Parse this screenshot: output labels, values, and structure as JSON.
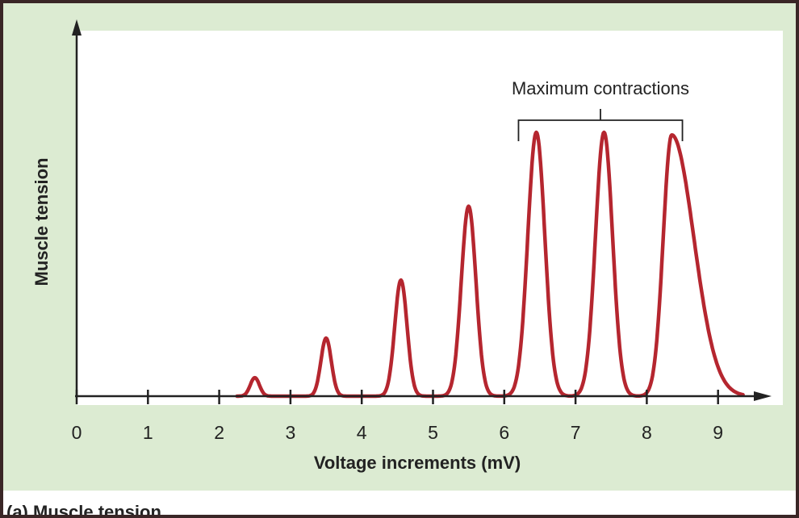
{
  "caption": "(a) Muscle tension",
  "colors": {
    "curve": "#b5262f",
    "axis": "#222222",
    "panel_background": "#dcebd2",
    "plot_background": "#ffffff"
  },
  "chart_data": {
    "type": "line",
    "title": "",
    "xlabel": "Voltage increments (mV)",
    "ylabel": "Muscle tension",
    "x_ticks": [
      "0",
      "1",
      "2",
      "3",
      "4",
      "5",
      "6",
      "7",
      "8",
      "9"
    ],
    "xlim": [
      0,
      9.5
    ],
    "ylim": [
      0,
      1.05
    ],
    "grid": false,
    "legend": "none",
    "series": [
      {
        "peaks": [
          {
            "x": 2.5,
            "y": 0.07
          },
          {
            "x": 3.5,
            "y": 0.22
          },
          {
            "x": 4.55,
            "y": 0.44
          },
          {
            "x": 5.5,
            "y": 0.72
          },
          {
            "x": 6.45,
            "y": 1.0
          },
          {
            "x": 7.4,
            "y": 1.0
          },
          {
            "x": 8.35,
            "y": 0.99
          }
        ]
      }
    ],
    "annotations": [
      {
        "text": "Maximum contractions",
        "x_range": [
          6.2,
          8.5
        ]
      }
    ]
  }
}
